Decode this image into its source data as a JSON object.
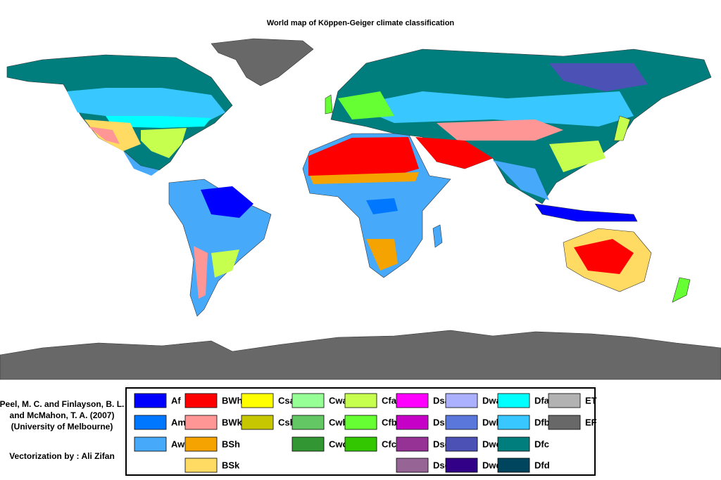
{
  "title": "World map of Köppen-Geiger climate classification",
  "credit": [
    "Peel, M. C. and Finlayson, B. L.",
    "and McMahon, T. A. (2007)",
    "(University of Melbourne)"
  ],
  "vectorization": "Vectorization by : Ali Zifan",
  "legend": {
    "columns": [
      [
        {
          "code": "Af",
          "color": "#0000fe"
        },
        {
          "code": "Am",
          "color": "#0077ff"
        },
        {
          "code": "Aw",
          "color": "#46a9fa"
        }
      ],
      [
        {
          "code": "BWh",
          "color": "#fe0000"
        },
        {
          "code": "BWk",
          "color": "#fe9695"
        },
        {
          "code": "BSh",
          "color": "#f5a301"
        },
        {
          "code": "BSk",
          "color": "#ffdb63"
        }
      ],
      [
        {
          "code": "Csa",
          "color": "#ffff00"
        },
        {
          "code": "Csb",
          "color": "#c6c700"
        }
      ],
      [
        {
          "code": "Cwa",
          "color": "#96ff96"
        },
        {
          "code": "Cwb",
          "color": "#63c764"
        },
        {
          "code": "Cwc",
          "color": "#329633"
        }
      ],
      [
        {
          "code": "Cfa",
          "color": "#c6ff4e"
        },
        {
          "code": "Cfb",
          "color": "#66ff33"
        },
        {
          "code": "Cfc",
          "color": "#33c701"
        }
      ],
      [
        {
          "code": "Dsa",
          "color": "#ff00fe"
        },
        {
          "code": "Dsb",
          "color": "#c600c7"
        },
        {
          "code": "Dsc",
          "color": "#963295"
        },
        {
          "code": "Dsd",
          "color": "#966495"
        }
      ],
      [
        {
          "code": "Dwa",
          "color": "#abb1ff"
        },
        {
          "code": "Dwb",
          "color": "#5a77db"
        },
        {
          "code": "Dwc",
          "color": "#4c51b5"
        },
        {
          "code": "Dwd",
          "color": "#320087"
        }
      ],
      [
        {
          "code": "Dfa",
          "color": "#00ffff"
        },
        {
          "code": "Dfb",
          "color": "#38c7ff"
        },
        {
          "code": "Dfc",
          "color": "#007e7d"
        },
        {
          "code": "Dfd",
          "color": "#00455e"
        }
      ],
      [
        {
          "code": "ET",
          "color": "#b2b2b2"
        },
        {
          "code": "EF",
          "color": "#686868"
        }
      ]
    ]
  }
}
